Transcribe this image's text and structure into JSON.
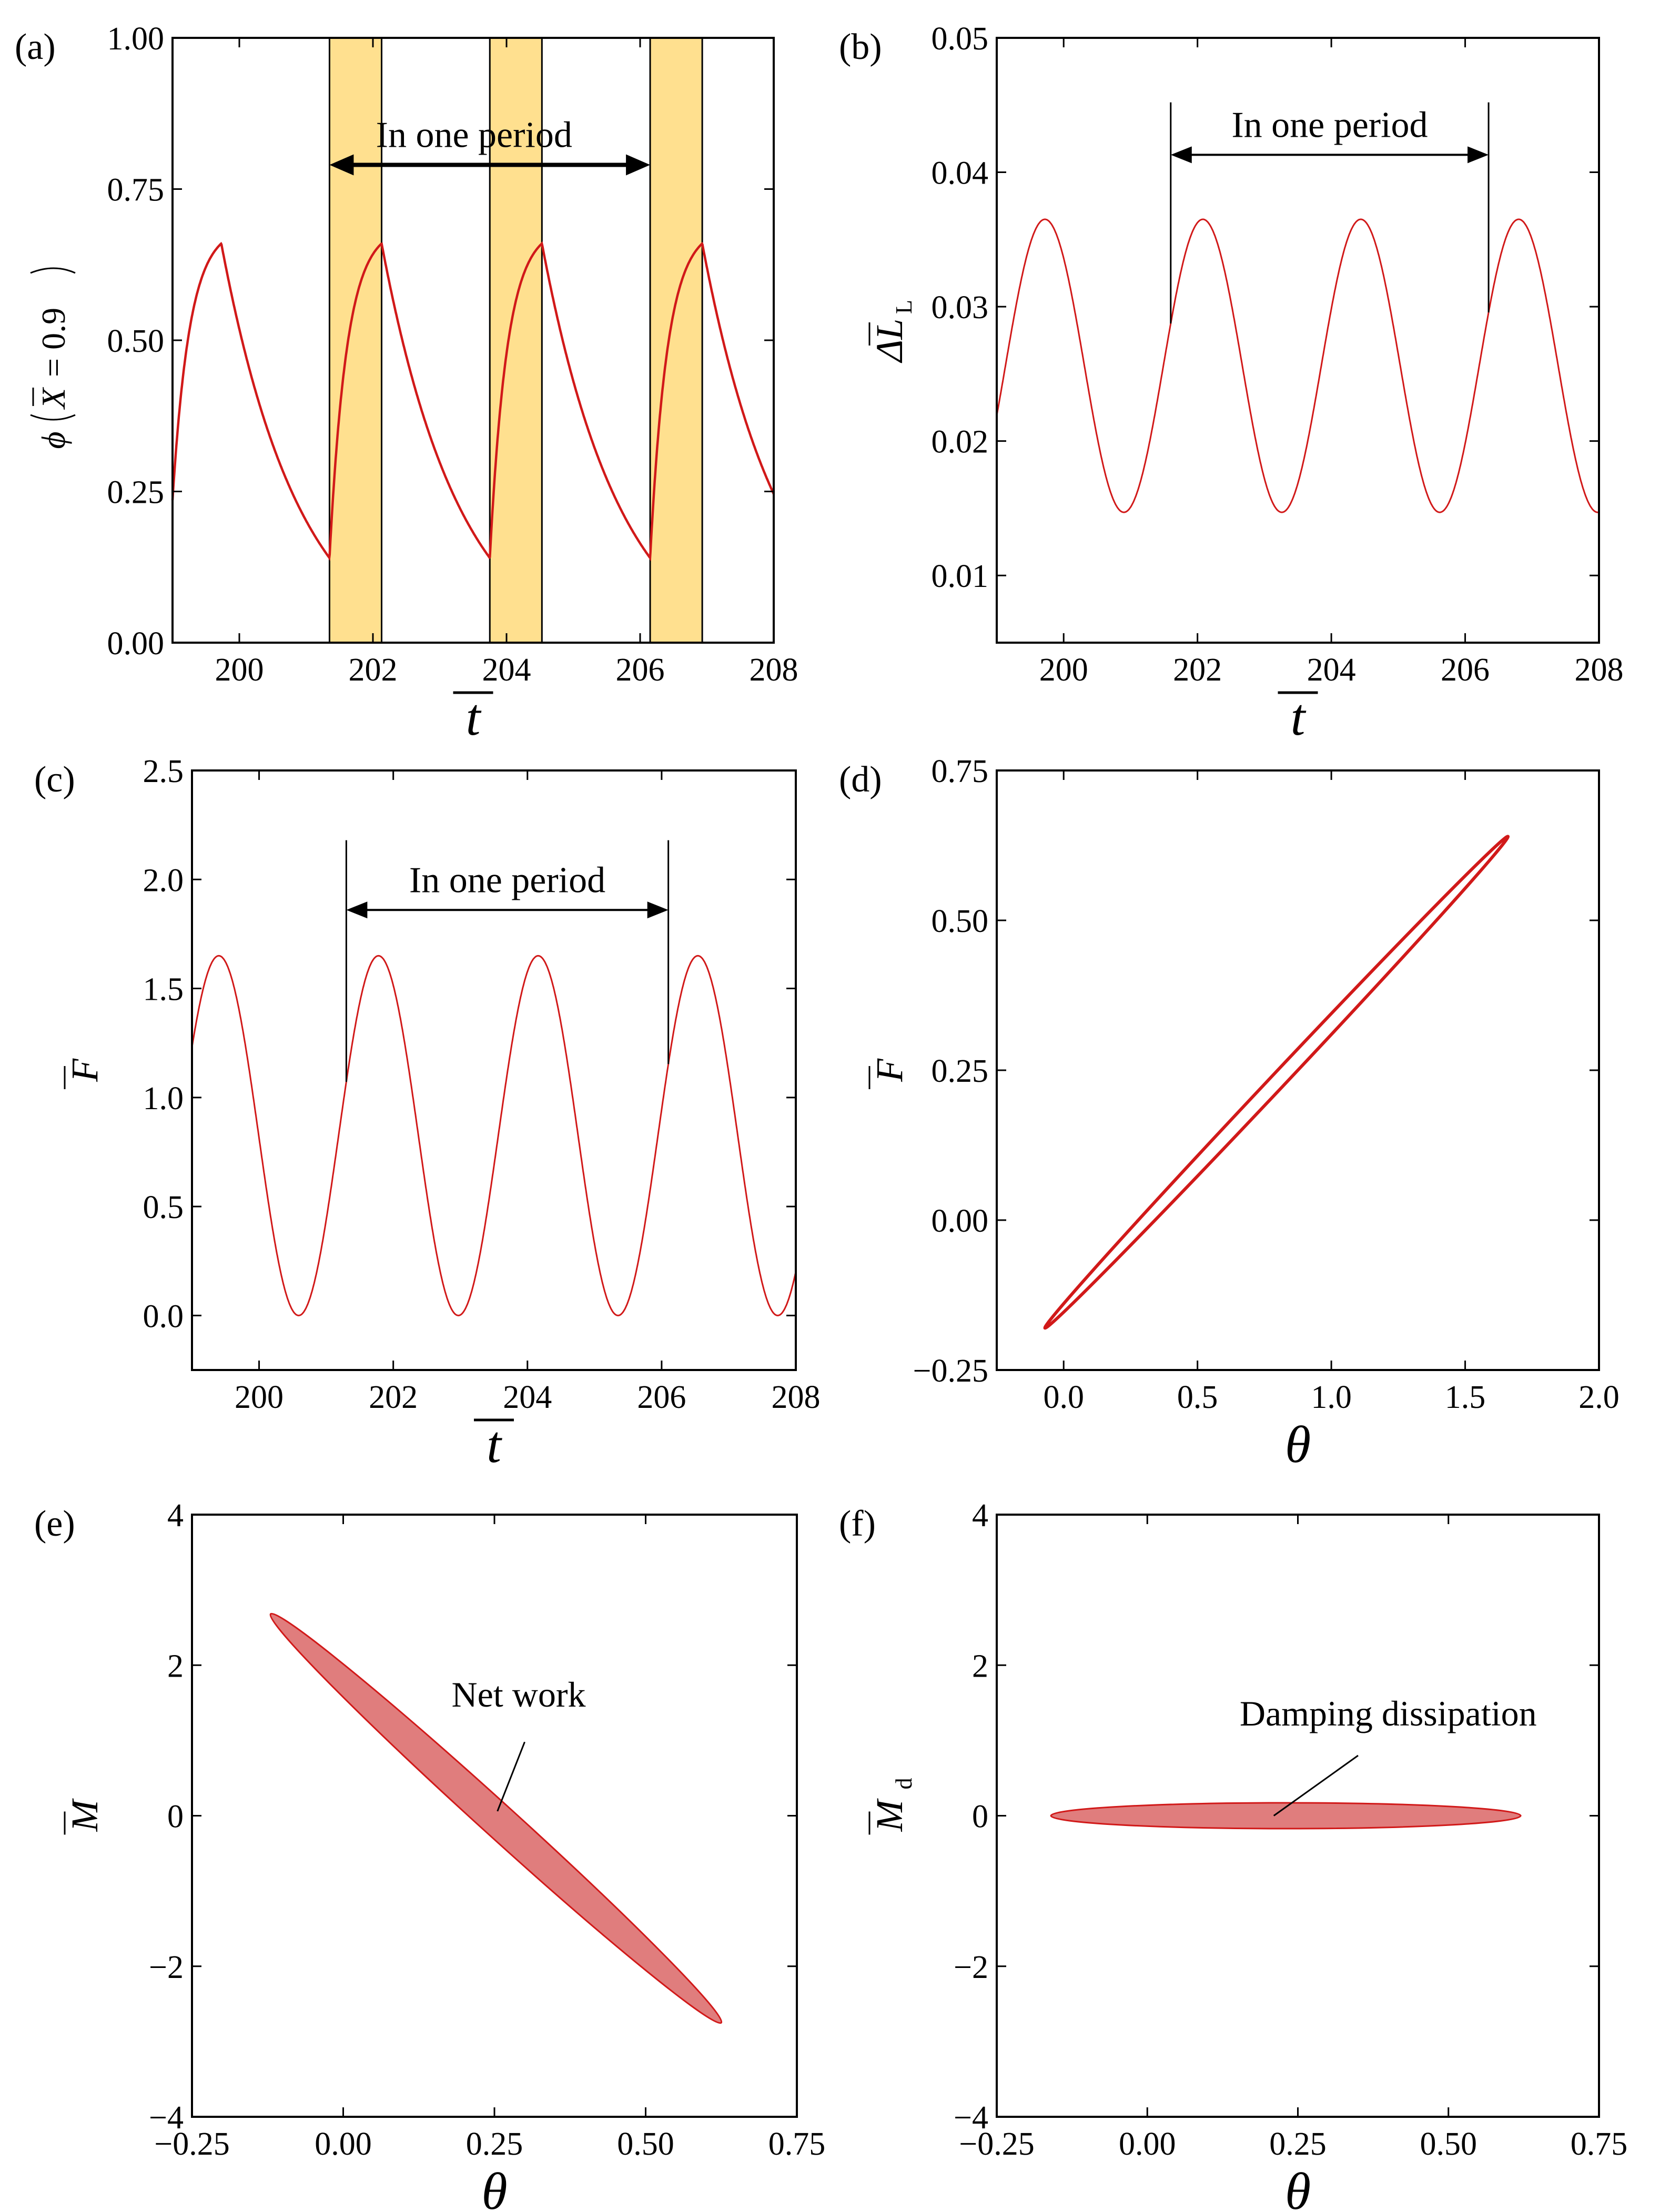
{
  "colors": {
    "curve": "#d11919",
    "shade": "#ffe08f",
    "fill": "#e07d7d",
    "axis": "#000000"
  },
  "chart_data": [
    {
      "panel": "(a)",
      "type": "line",
      "xlabel": "t",
      "ylabel_prefix": "ϕ",
      "ylabel_var": "X",
      "ylabel_suffix": "= 0.9",
      "xlim": [
        199,
        208
      ],
      "ylim": [
        0,
        1
      ],
      "xticks": [
        200,
        202,
        204,
        206,
        208
      ],
      "yticks": [
        0.0,
        0.25,
        0.5,
        0.75,
        1.0
      ],
      "xtick_labels": [
        "200",
        "202",
        "204",
        "206",
        "208"
      ],
      "ytick_labels": [
        "0.00",
        "0.25",
        "0.50",
        "0.75",
        "1.00"
      ],
      "curve": {
        "kind": "charge",
        "start": 201.35,
        "period": 2.4,
        "rise": 0.78,
        "min": 0.14,
        "max": 0.66
      },
      "shaded_intervals": [
        [
          201.35,
          202.13
        ],
        [
          203.75,
          204.53
        ],
        [
          206.15,
          206.93
        ]
      ],
      "annotation": {
        "text": "In one period",
        "arrow_from": 201.35,
        "arrow_to": 206.15,
        "y": 0.79,
        "bold": true
      }
    },
    {
      "panel": "(b)",
      "type": "line",
      "xlabel": "t",
      "ylabel": "ΔL",
      "ylabel_sub": "L",
      "xlim": [
        199,
        208
      ],
      "ylim": [
        0.005,
        0.05
      ],
      "xticks": [
        200,
        202,
        204,
        206,
        208
      ],
      "yticks": [
        0.01,
        0.02,
        0.03,
        0.04,
        0.05
      ],
      "xtick_labels": [
        "200",
        "202",
        "204",
        "206",
        "208"
      ],
      "ytick_labels": [
        "0.01",
        "0.02",
        "0.03",
        "0.04",
        "0.05"
      ],
      "curve": {
        "kind": "sine",
        "peak": 199.72,
        "period": 2.36,
        "min": 0.0147,
        "max": 0.0365
      },
      "markers": [
        {
          "x": 201.6,
          "y_top": 0.0452
        },
        {
          "x": 206.35,
          "y_top": 0.0452
        }
      ],
      "annotation": {
        "text": "In one period",
        "arrow_from": 201.6,
        "arrow_to": 206.35,
        "y": 0.0413,
        "bold": false
      }
    },
    {
      "panel": "(c)",
      "type": "line",
      "xlabel": "t",
      "ylabel": "F",
      "xlim": [
        199,
        208
      ],
      "ylim": [
        -0.25,
        2.5
      ],
      "xticks": [
        200,
        202,
        204,
        206,
        208
      ],
      "yticks": [
        0.0,
        0.5,
        1.0,
        1.5,
        2.0,
        2.5
      ],
      "xtick_labels": [
        "200",
        "202",
        "204",
        "206",
        "208"
      ],
      "ytick_labels": [
        "0.0",
        "0.5",
        "1.0",
        "1.5",
        "2.0",
        "2.5"
      ],
      "curve": {
        "kind": "sine",
        "peak": 199.4,
        "period": 2.38,
        "min": 0.0,
        "max": 1.65
      },
      "markers": [
        {
          "x": 201.3,
          "y_top": 2.18
        },
        {
          "x": 206.1,
          "y_top": 2.18
        }
      ],
      "annotation": {
        "text": "In one period",
        "arrow_from": 201.3,
        "arrow_to": 206.1,
        "y": 1.86,
        "bold": false
      }
    },
    {
      "panel": "(d)",
      "type": "line",
      "xlabel": "θ",
      "ylabel": "F",
      "xlim": [
        -0.25,
        2.0
      ],
      "ylim": [
        -0.25,
        0.75
      ],
      "xticks": [
        0.0,
        0.5,
        1.0,
        1.5,
        2.0
      ],
      "yticks": [
        -0.25,
        0.0,
        0.25,
        0.5,
        0.75
      ],
      "xtick_labels": [
        "0.0",
        "0.5",
        "1.0",
        "1.5",
        "2.0"
      ],
      "ytick_labels": [
        "−0.25",
        "0.00",
        "0.25",
        "0.50",
        "0.75"
      ],
      "ellipse": {
        "p1": [
          -0.07,
          -0.18
        ],
        "p2": [
          1.66,
          0.64
        ],
        "half_width": 0.018,
        "filled": false
      }
    },
    {
      "panel": "(e)",
      "type": "area",
      "xlabel": "θ",
      "ylabel": "M",
      "xlim": [
        -0.25,
        0.75
      ],
      "ylim": [
        -4,
        4
      ],
      "xticks": [
        -0.25,
        0.0,
        0.25,
        0.5,
        0.75
      ],
      "yticks": [
        -4,
        -2,
        0,
        2,
        4
      ],
      "xtick_labels": [
        "−0.25",
        "0.00",
        "0.25",
        "0.50",
        "0.75"
      ],
      "ytick_labels": [
        "−4",
        "−2",
        "0",
        "2",
        "4"
      ],
      "ellipse": {
        "p1": [
          -0.12,
          2.68
        ],
        "p2": [
          0.625,
          -2.75
        ],
        "half_width": 0.055,
        "filled": true
      },
      "label": {
        "text": "Net work",
        "x": 0.29,
        "y": 1.45,
        "leader_from": [
          0.3,
          0.98
        ],
        "leader_to": [
          0.255,
          0.06
        ]
      }
    },
    {
      "panel": "(f)",
      "type": "area",
      "xlabel": "θ",
      "ylabel": "M",
      "ylabel_sub": "d",
      "xlim": [
        -0.25,
        0.75
      ],
      "ylim": [
        -4,
        4
      ],
      "xticks": [
        -0.25,
        0.0,
        0.25,
        0.5,
        0.75
      ],
      "yticks": [
        -4,
        -2,
        0,
        2,
        4
      ],
      "xtick_labels": [
        "−0.25",
        "0.00",
        "0.25",
        "0.50",
        "0.75"
      ],
      "ytick_labels": [
        "−4",
        "−2",
        "0",
        "2",
        "4"
      ],
      "ellipse": {
        "p1": [
          -0.16,
          0.0
        ],
        "p2": [
          0.62,
          0.0
        ],
        "half_width": 0.055,
        "filled": true
      },
      "label": {
        "text": "Damping dissipation",
        "x": 0.4,
        "y": 1.2,
        "leader_from": [
          0.35,
          0.8
        ],
        "leader_to": [
          0.21,
          0.0
        ]
      }
    }
  ]
}
